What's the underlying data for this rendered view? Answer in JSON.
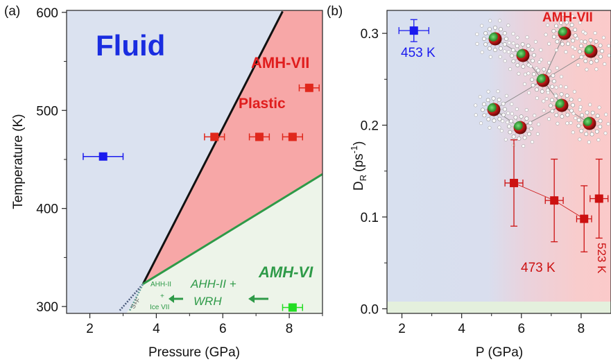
{
  "chart_data": [
    {
      "type": "scatter",
      "panel_label": "(a)",
      "xlabel": "Pressure (GPa)",
      "ylabel": "Temperature (K)",
      "xlim": [
        1.3,
        9.0
      ],
      "ylim": [
        293,
        602
      ],
      "xticks": [
        2,
        4,
        6,
        8
      ],
      "yticks": [
        300,
        400,
        500,
        600
      ],
      "regions": [
        {
          "label": "Fluid",
          "color": "#dbe2f0"
        },
        {
          "label": "AMH-VII",
          "color": "#f7a7a7"
        },
        {
          "label": "Plastic",
          "color": "#f7a7a7"
        },
        {
          "label": "AMH-VI",
          "color": "#edf4e9"
        }
      ],
      "boundaries": [
        {
          "name": "fluid-plastic",
          "color": "#111111",
          "points": [
            [
              3.6,
              323
            ],
            [
              7.8,
              601
            ]
          ]
        },
        {
          "name": "plastic-AMH-VI",
          "color": "#2e9a48",
          "points": [
            [
              3.6,
              323
            ],
            [
              9.0,
              435
            ]
          ]
        },
        {
          "name": "low-T-1",
          "color": "#4a5a7a",
          "dotted": true,
          "points": [
            [
              2.9,
              296
            ],
            [
              3.6,
              323
            ]
          ]
        },
        {
          "name": "low-T-2",
          "color": "#5f9d9a",
          "dotted": true,
          "points": [
            [
              3.2,
              296
            ],
            [
              3.6,
              323
            ]
          ]
        }
      ],
      "annotations": [
        "AHH-II",
        "+",
        "Ice VII",
        "AHH-II +",
        "WRH",
        "S+F"
      ],
      "series": [
        {
          "color": "#1a1aee",
          "points": [
            {
              "x": 2.4,
              "y": 453,
              "xerr": 0.6
            }
          ]
        },
        {
          "color": "#e0281c",
          "points": [
            {
              "x": 5.75,
              "y": 473,
              "xerr": 0.3
            },
            {
              "x": 7.1,
              "y": 473,
              "xerr": 0.3
            },
            {
              "x": 8.1,
              "y": 473,
              "xerr": 0.3
            },
            {
              "x": 8.6,
              "y": 523,
              "xerr": 0.3
            }
          ]
        },
        {
          "color": "#22dd22",
          "points": [
            {
              "x": 8.1,
              "y": 299,
              "xerr": 0.3
            }
          ]
        }
      ]
    },
    {
      "type": "scatter",
      "panel_label": "(b)",
      "xlabel": "P (GPa)",
      "ylabel": "D",
      "ylabel_sub": "R",
      "ylabel_unit": "(ps",
      "ylabel_sup": "-1",
      "ylabel_close": ")",
      "xlim": [
        1.5,
        9.0
      ],
      "ylim": [
        -0.005,
        0.325
      ],
      "xticks": [
        2,
        4,
        6,
        8
      ],
      "yticks": [
        "0.0",
        "0.1",
        "0.2",
        "0.3"
      ],
      "region_labels": [
        "AMH-VII"
      ],
      "series": [
        {
          "name": "453 K",
          "color": "#1a1aee",
          "points": [
            {
              "x": 2.4,
              "y": 0.303,
              "xerr": 0.5,
              "yerr": 0.012
            }
          ]
        },
        {
          "name": "473 K",
          "color": "#cc1111",
          "points": [
            {
              "x": 5.75,
              "y": 0.137,
              "xerr": 0.3,
              "yerr": 0.047
            },
            {
              "x": 7.1,
              "y": 0.118,
              "xerr": 0.3,
              "yerr": 0.045
            },
            {
              "x": 8.1,
              "y": 0.098,
              "xerr": 0.25,
              "yerr": 0.036
            }
          ]
        },
        {
          "name": "523 K",
          "color": "#cc1111",
          "points": [
            {
              "x": 8.6,
              "y": 0.12,
              "xerr": 0.3,
              "yerr": 0.043
            }
          ]
        }
      ]
    }
  ],
  "icons": [
    "molecular-cluster-icon"
  ]
}
